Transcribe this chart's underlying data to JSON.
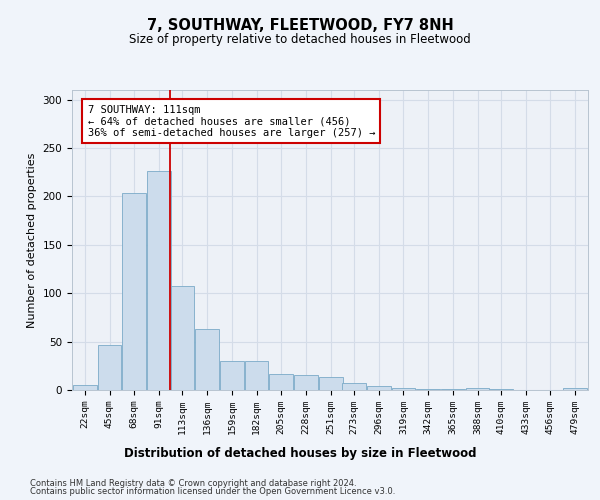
{
  "title": "7, SOUTHWAY, FLEETWOOD, FY7 8NH",
  "subtitle": "Size of property relative to detached houses in Fleetwood",
  "xlabel": "Distribution of detached houses by size in Fleetwood",
  "ylabel": "Number of detached properties",
  "bar_values": [
    5,
    46,
    204,
    226,
    107,
    63,
    30,
    30,
    17,
    16,
    13,
    7,
    4,
    2,
    1,
    1,
    2,
    1,
    0,
    0,
    2
  ],
  "bar_labels": [
    "22sqm",
    "45sqm",
    "68sqm",
    "91sqm",
    "113sqm",
    "136sqm",
    "159sqm",
    "182sqm",
    "205sqm",
    "228sqm",
    "251sqm",
    "273sqm",
    "296sqm",
    "319sqm",
    "342sqm",
    "365sqm",
    "388sqm",
    "410sqm",
    "433sqm",
    "456sqm",
    "479sqm"
  ],
  "bin_edges": [
    22,
    45,
    68,
    91,
    113,
    136,
    159,
    182,
    205,
    228,
    251,
    273,
    296,
    319,
    342,
    365,
    388,
    410,
    433,
    456,
    479
  ],
  "bar_color": "#ccdcec",
  "bar_edge_color": "#7aaac8",
  "property_line_x": 113,
  "property_line_color": "#cc0000",
  "annotation_text": "7 SOUTHWAY: 111sqm\n← 64% of detached houses are smaller (456)\n36% of semi-detached houses are larger (257) →",
  "annotation_box_color": "#ffffff",
  "annotation_box_edge_color": "#cc0000",
  "ylim": [
    0,
    310
  ],
  "yticks": [
    0,
    50,
    100,
    150,
    200,
    250,
    300
  ],
  "grid_color": "#d4dce8",
  "plot_bg_color": "#edf1f7",
  "fig_bg_color": "#f0f4fa",
  "footer_line1": "Contains HM Land Registry data © Crown copyright and database right 2024.",
  "footer_line2": "Contains public sector information licensed under the Open Government Licence v3.0."
}
